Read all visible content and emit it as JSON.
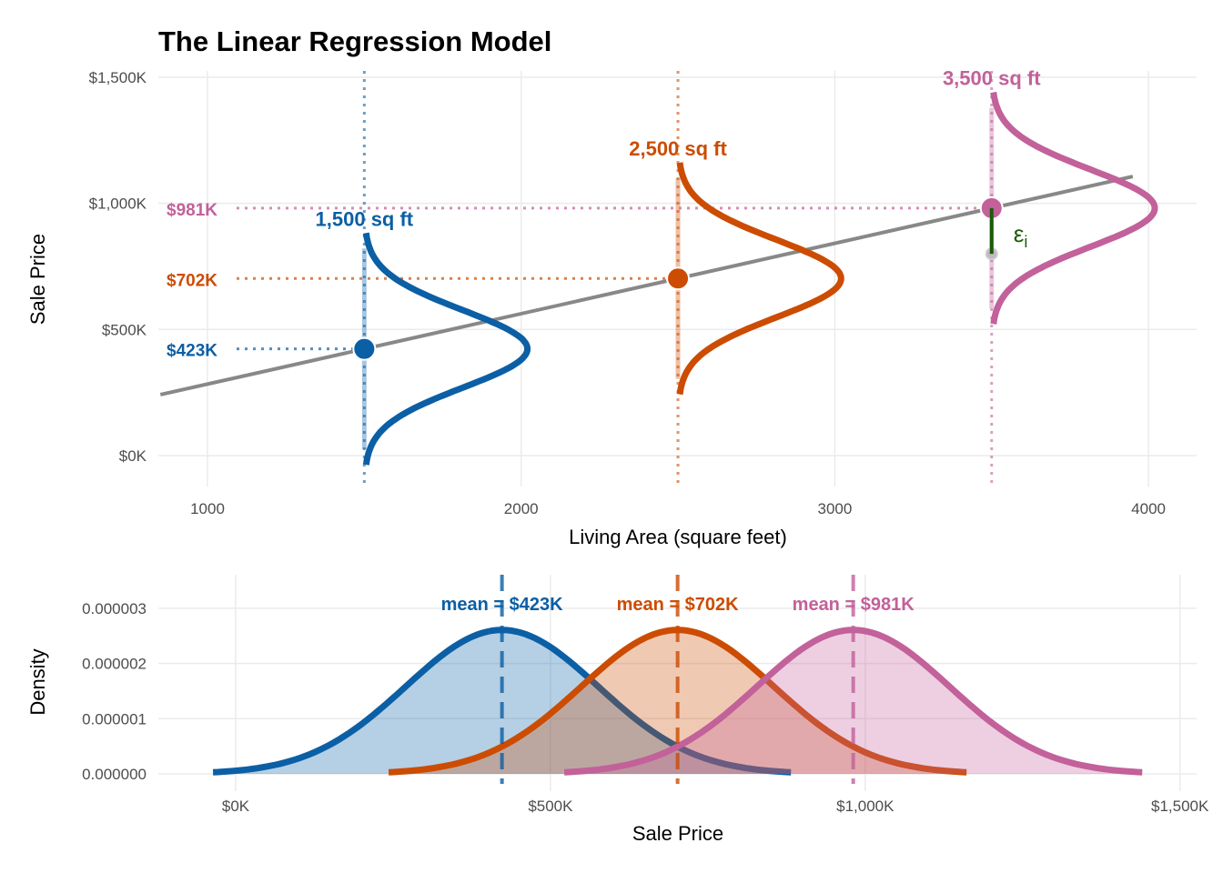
{
  "chart_data": [
    {
      "type": "line",
      "title": "The Linear Regression Model",
      "xlabel": "Living Area (square feet)",
      "ylabel": "Sale Price",
      "xlim": [
        850,
        4150
      ],
      "ylim": [
        -120,
        1530
      ],
      "x_ticks": [
        1000,
        2000,
        3000,
        4000
      ],
      "x_tick_labels": [
        "1000",
        "2000",
        "3000",
        "4000"
      ],
      "y_ticks": [
        0,
        500,
        1000,
        1500
      ],
      "y_tick_labels": [
        "$0K",
        "$500K",
        "$1,000K",
        "$1,500K"
      ],
      "regression": {
        "intercept": 4.5,
        "slope_per_sqft": 0.279,
        "x_range": [
          850,
          3950
        ],
        "color": "#888888"
      },
      "sd": 153,
      "density_scale_sqft": 520,
      "groups": [
        {
          "x": 1500,
          "mean": 423,
          "label": "1,500 sq ft",
          "value_label": "$423K",
          "color": "#0b5fa5"
        },
        {
          "x": 2500,
          "mean": 702,
          "label": "2,500 sq ft",
          "value_label": "$702K",
          "color": "#cc4c02"
        },
        {
          "x": 3500,
          "mean": 981,
          "label": "3,500 sq ft",
          "value_label": "$981K",
          "color": "#c2619a"
        }
      ],
      "residual": {
        "x": 3500,
        "observed": 800,
        "fitted": 981,
        "label": "ε",
        "subscript": "i",
        "color": "#1a5c0a"
      }
    },
    {
      "type": "area",
      "xlabel": "Sale Price",
      "ylabel": "Density",
      "xlim": [
        -90,
        1530
      ],
      "ylim": [
        -3e-07,
        3.5e-06
      ],
      "x_ticks": [
        0,
        500,
        1000,
        1500
      ],
      "x_tick_labels": [
        "$0K",
        "$500K",
        "$1,000K",
        "$1,500K"
      ],
      "y_ticks": [
        0,
        1e-06,
        2e-06,
        3e-06
      ],
      "y_tick_labels": [
        "0.000000",
        "0.000001",
        "0.000002",
        "0.000003"
      ],
      "series": [
        {
          "name": "mean = $423K",
          "mean": 423,
          "sd": 153,
          "color": "#0b5fa5"
        },
        {
          "name": "mean = $702K",
          "mean": 702,
          "sd": 153,
          "color": "#cc4c02"
        },
        {
          "name": "mean = $981K",
          "mean": 981,
          "sd": 153,
          "color": "#c2619a"
        }
      ]
    }
  ]
}
